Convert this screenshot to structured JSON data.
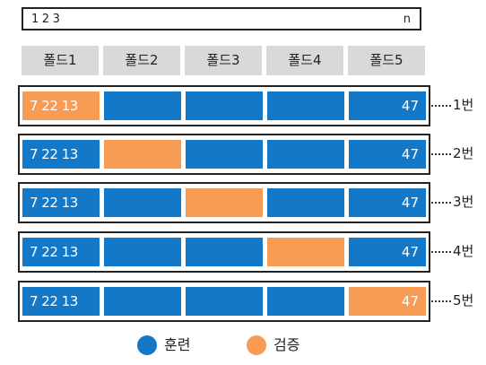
{
  "data_bar": {
    "start_label": "1 2 3",
    "end_label": "n"
  },
  "folds": [
    "폴드1",
    "폴드2",
    "폴드3",
    "폴드4",
    "폴드5"
  ],
  "cell_labels": {
    "first": "7 22 13",
    "last": "47"
  },
  "rows": [
    {
      "label": "1번",
      "validation_fold": 1
    },
    {
      "label": "2번",
      "validation_fold": 2
    },
    {
      "label": "3번",
      "validation_fold": 3
    },
    {
      "label": "4번",
      "validation_fold": 4
    },
    {
      "label": "5번",
      "validation_fold": 5
    }
  ],
  "legend": [
    {
      "label": "훈련",
      "color": "#1478c8"
    },
    {
      "label": "검증",
      "color": "#f79b55"
    }
  ],
  "colors": {
    "train": "#1478c8",
    "validation": "#f79b55"
  }
}
